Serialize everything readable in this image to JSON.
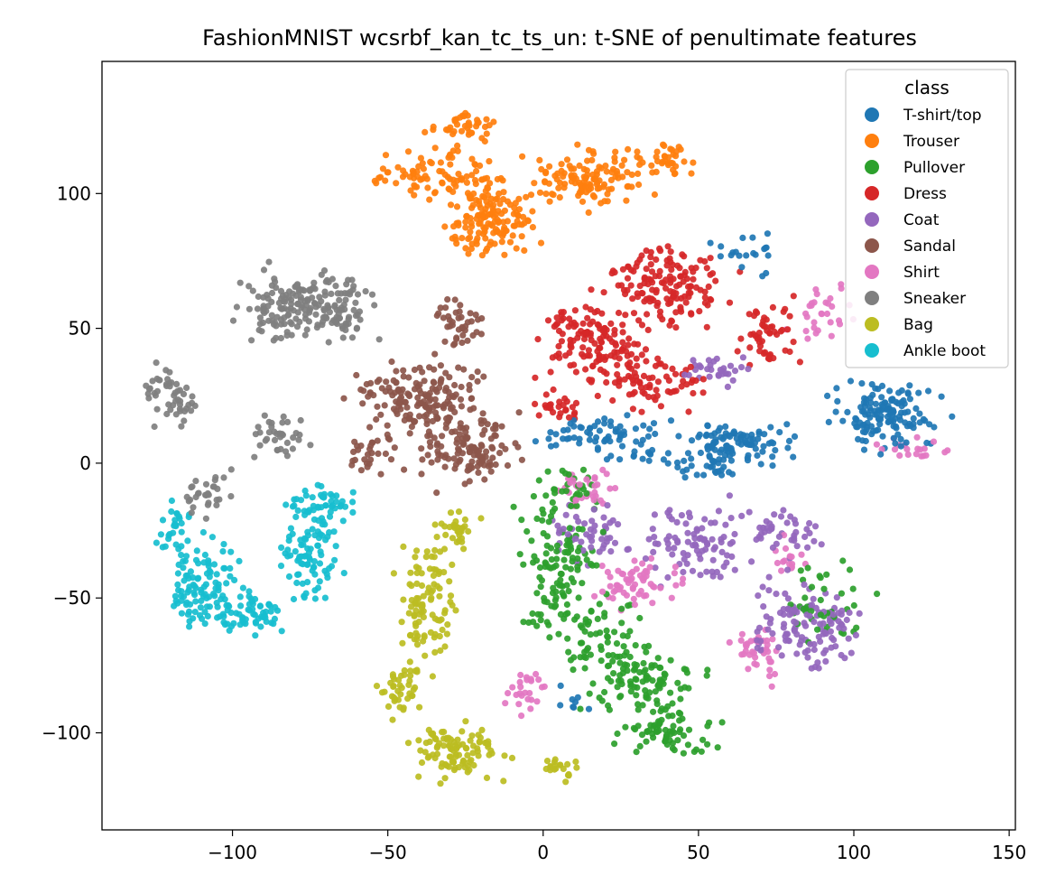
{
  "chart_data": {
    "type": "scatter",
    "title": "FashionMNIST wcsrbf_kan_tc_ts_un: t-SNE of penultimate features",
    "xlabel": "",
    "ylabel": "",
    "xlim": [
      -142,
      152
    ],
    "ylim": [
      -136,
      149
    ],
    "xticks": [
      {
        "value": -100,
        "label": "−100"
      },
      {
        "value": -50,
        "label": "−50"
      },
      {
        "value": 0,
        "label": "0"
      },
      {
        "value": 50,
        "label": "50"
      },
      {
        "value": 100,
        "label": "100"
      },
      {
        "value": 150,
        "label": "150"
      }
    ],
    "yticks": [
      {
        "value": 100,
        "label": "100"
      },
      {
        "value": 50,
        "label": "50"
      },
      {
        "value": 0,
        "label": "0"
      },
      {
        "value": -50,
        "label": "−50"
      },
      {
        "value": -100,
        "label": "−100"
      }
    ],
    "grid": false,
    "legend": {
      "title": "class",
      "placement": "top-right"
    },
    "series": [
      {
        "name": "T-shirt/top",
        "color": "#1f77b4",
        "clusters": [
          {
            "center": [
              110,
              18
            ],
            "spread": [
              14,
              9
            ],
            "count": 140
          },
          {
            "center": [
              62,
              8
            ],
            "spread": [
              14,
              6
            ],
            "count": 90
          },
          {
            "center": [
              20,
              10
            ],
            "spread": [
              15,
              7
            ],
            "count": 70
          },
          {
            "center": [
              50,
              0
            ],
            "spread": [
              15,
              5
            ],
            "count": 40
          },
          {
            "center": [
              65,
              78
            ],
            "spread": [
              8,
              6
            ],
            "count": 20
          },
          {
            "center": [
              10,
              -90
            ],
            "spread": [
              5,
              5
            ],
            "count": 8
          }
        ]
      },
      {
        "name": "Trouser",
        "color": "#ff7f0e",
        "clusters": [
          {
            "center": [
              -18,
              90
            ],
            "spread": [
              12,
              12
            ],
            "count": 150
          },
          {
            "center": [
              15,
              105
            ],
            "spread": [
              15,
              9
            ],
            "count": 120
          },
          {
            "center": [
              -35,
              108
            ],
            "spread": [
              15,
              7
            ],
            "count": 80
          },
          {
            "center": [
              -25,
              125
            ],
            "spread": [
              9,
              5
            ],
            "count": 40
          },
          {
            "center": [
              40,
              112
            ],
            "spread": [
              8,
              6
            ],
            "count": 35
          }
        ]
      },
      {
        "name": "Pullover",
        "color": "#2ca02c",
        "clusters": [
          {
            "center": [
              5,
              -40
            ],
            "spread": [
              10,
              22
            ],
            "count": 120
          },
          {
            "center": [
              32,
              -80
            ],
            "spread": [
              15,
              9
            ],
            "count": 100
          },
          {
            "center": [
              40,
              -100
            ],
            "spread": [
              13,
              7
            ],
            "count": 70
          },
          {
            "center": [
              18,
              -60
            ],
            "spread": [
              10,
              12
            ],
            "count": 50
          },
          {
            "center": [
              90,
              -50
            ],
            "spread": [
              12,
              14
            ],
            "count": 40
          },
          {
            "center": [
              10,
              -10
            ],
            "spread": [
              8,
              8
            ],
            "count": 30
          }
        ]
      },
      {
        "name": "Dress",
        "color": "#d62728",
        "clusters": [
          {
            "center": [
              15,
              45
            ],
            "spread": [
              14,
              14
            ],
            "count": 140
          },
          {
            "center": [
              42,
              65
            ],
            "spread": [
              15,
              12
            ],
            "count": 140
          },
          {
            "center": [
              35,
              30
            ],
            "spread": [
              14,
              9
            ],
            "count": 70
          },
          {
            "center": [
              72,
              48
            ],
            "spread": [
              8,
              10
            ],
            "count": 50
          },
          {
            "center": [
              5,
              20
            ],
            "spread": [
              6,
              5
            ],
            "count": 25
          }
        ]
      },
      {
        "name": "Coat",
        "color": "#9467bd",
        "clusters": [
          {
            "center": [
              85,
              -60
            ],
            "spread": [
              15,
              14
            ],
            "count": 120
          },
          {
            "center": [
              50,
              -30
            ],
            "spread": [
              15,
              12
            ],
            "count": 90
          },
          {
            "center": [
              15,
              -25
            ],
            "spread": [
              10,
              10
            ],
            "count": 50
          },
          {
            "center": [
              78,
              -25
            ],
            "spread": [
              10,
              8
            ],
            "count": 40
          },
          {
            "center": [
              55,
              35
            ],
            "spread": [
              10,
              5
            ],
            "count": 30
          }
        ]
      },
      {
        "name": "Sandal",
        "color": "#8c564b",
        "clusters": [
          {
            "center": [
              -40,
              25
            ],
            "spread": [
              16,
              10
            ],
            "count": 160
          },
          {
            "center": [
              -25,
              5
            ],
            "spread": [
              14,
              10
            ],
            "count": 120
          },
          {
            "center": [
              -27,
              52
            ],
            "spread": [
              6,
              8
            ],
            "count": 40
          },
          {
            "center": [
              -55,
              5
            ],
            "spread": [
              8,
              8
            ],
            "count": 30
          }
        ]
      },
      {
        "name": "Shirt",
        "color": "#e377c2",
        "clusters": [
          {
            "center": [
              30,
              -45
            ],
            "spread": [
              10,
              8
            ],
            "count": 60
          },
          {
            "center": [
              15,
              -10
            ],
            "spread": [
              7,
              6
            ],
            "count": 35
          },
          {
            "center": [
              70,
              -70
            ],
            "spread": [
              8,
              9
            ],
            "count": 40
          },
          {
            "center": [
              90,
              55
            ],
            "spread": [
              8,
              10
            ],
            "count": 30
          },
          {
            "center": [
              -5,
              -85
            ],
            "spread": [
              7,
              8
            ],
            "count": 25
          },
          {
            "center": [
              120,
              5
            ],
            "spread": [
              10,
              4
            ],
            "count": 20
          },
          {
            "center": [
              80,
              -35
            ],
            "spread": [
              5,
              5
            ],
            "count": 15
          }
        ]
      },
      {
        "name": "Sneaker",
        "color": "#7f7f7f",
        "clusters": [
          {
            "center": [
              -82,
              58
            ],
            "spread": [
              12,
              10
            ],
            "count": 120
          },
          {
            "center": [
              -65,
              58
            ],
            "spread": [
              10,
              10
            ],
            "count": 80
          },
          {
            "center": [
              -120,
              25
            ],
            "spread": [
              6,
              9
            ],
            "count": 50
          },
          {
            "center": [
              -85,
              10
            ],
            "spread": [
              8,
              7
            ],
            "count": 35
          },
          {
            "center": [
              -107,
              -10
            ],
            "spread": [
              7,
              7
            ],
            "count": 30
          }
        ]
      },
      {
        "name": "Bag",
        "color": "#bcbd22",
        "clusters": [
          {
            "center": [
              -37,
              -50
            ],
            "spread": [
              7,
              22
            ],
            "count": 100
          },
          {
            "center": [
              -28,
              -108
            ],
            "spread": [
              13,
              8
            ],
            "count": 100
          },
          {
            "center": [
              -45,
              -85
            ],
            "spread": [
              6,
              8
            ],
            "count": 40
          },
          {
            "center": [
              -28,
              -25
            ],
            "spread": [
              6,
              5
            ],
            "count": 30
          },
          {
            "center": [
              5,
              -112
            ],
            "spread": [
              5,
              4
            ],
            "count": 20
          }
        ]
      },
      {
        "name": "Ankle boot",
        "color": "#17becf",
        "clusters": [
          {
            "center": [
              -110,
              -45
            ],
            "spread": [
              10,
              14
            ],
            "count": 100
          },
          {
            "center": [
              -95,
              -55
            ],
            "spread": [
              10,
              6
            ],
            "count": 60
          },
          {
            "center": [
              -75,
              -35
            ],
            "spread": [
              8,
              14
            ],
            "count": 80
          },
          {
            "center": [
              -70,
              -15
            ],
            "spread": [
              10,
              6
            ],
            "count": 50
          },
          {
            "center": [
              -118,
              -25
            ],
            "spread": [
              5,
              8
            ],
            "count": 30
          }
        ]
      }
    ]
  }
}
